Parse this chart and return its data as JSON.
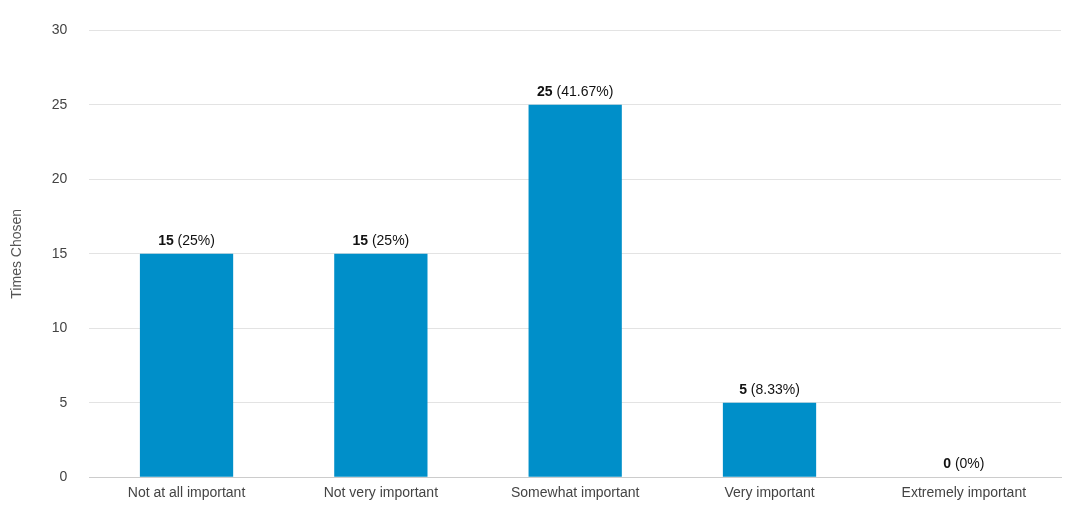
{
  "chart_data": {
    "type": "bar",
    "ylabel": "Times Chosen",
    "categories": [
      "Not at all important",
      "Not very important",
      "Somewhat important",
      "Very important",
      "Extremely important"
    ],
    "values": [
      15,
      15,
      25,
      5,
      0
    ],
    "value_labels": [
      "15 (25%)",
      "15 (25%)",
      "25 (41.67%)",
      "5 (8.33%)",
      "0 (0%)"
    ],
    "color": "#008fc9",
    "ylim": [
      0,
      30
    ],
    "yticks": [
      0,
      5,
      10,
      15,
      20,
      25,
      30
    ],
    "grid": "y",
    "legend": false
  }
}
